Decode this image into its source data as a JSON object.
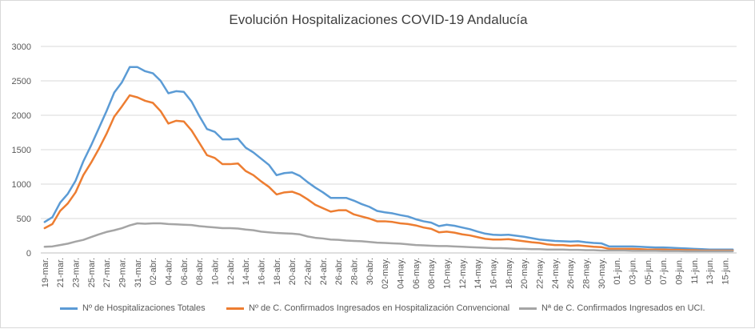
{
  "chart_data": {
    "type": "line",
    "title": "Evolución Hospitalizaciones COVID-19 Andalucía",
    "xlabel": "",
    "ylabel": "",
    "ylim": [
      0,
      3000
    ],
    "yticks": [
      "0",
      "500",
      "1000",
      "1500",
      "2000",
      "2500",
      "3000"
    ],
    "grid": "horizontal",
    "legend_position": "bottom",
    "x": [
      "19-mar.",
      "20-mar.",
      "21-mar.",
      "22-mar.",
      "23-mar.",
      "24-mar.",
      "25-mar.",
      "26-mar.",
      "27-mar.",
      "28-mar.",
      "29-mar.",
      "30-mar.",
      "31-mar.",
      "01-abr.",
      "02-abr.",
      "03-abr.",
      "04-abr.",
      "05-abr.",
      "06-abr.",
      "07-abr.",
      "08-abr.",
      "09-abr.",
      "10-abr.",
      "11-abr.",
      "12-abr.",
      "13-abr.",
      "14-abr.",
      "15-abr.",
      "16-abr.",
      "17-abr.",
      "18-abr.",
      "19-abr.",
      "20-abr.",
      "21-abr.",
      "22-abr.",
      "23-abr.",
      "24-abr.",
      "25-abr.",
      "26-abr.",
      "27-abr.",
      "28-abr.",
      "29-abr.",
      "30-abr.",
      "01-may.",
      "02-may.",
      "03-may.",
      "04-may.",
      "05-may.",
      "06-may.",
      "07-may.",
      "08-may.",
      "09-may.",
      "10-may.",
      "11-may.",
      "12-may.",
      "13-may.",
      "14-may.",
      "15-may.",
      "16-may.",
      "17-may.",
      "18-may.",
      "19-may.",
      "20-may.",
      "21-may.",
      "22-may.",
      "23-may.",
      "24-may.",
      "25-may.",
      "26-may.",
      "27-may.",
      "28-may.",
      "29-may.",
      "30-may.",
      "31-may.",
      "01-jun.",
      "02-jun.",
      "03-jun.",
      "04-jun.",
      "05-jun.",
      "06-jun.",
      "07-jun.",
      "08-jun.",
      "09-jun.",
      "10-jun.",
      "11-jun.",
      "12-jun.",
      "13-jun.",
      "14-jun.",
      "15-jun.",
      "16-jun."
    ],
    "x_tick_labels": [
      "19-mar.",
      "21-mar.",
      "23-mar.",
      "25-mar.",
      "27-mar.",
      "29-mar.",
      "31-mar.",
      "02-abr.",
      "04-abr.",
      "06-abr.",
      "08-abr.",
      "10-abr.",
      "12-abr.",
      "14-abr.",
      "16-abr.",
      "18-abr.",
      "20-abr.",
      "22-abr.",
      "24-abr.",
      "26-abr.",
      "28-abr.",
      "30-abr.",
      "02-may.",
      "04-may.",
      "06-may.",
      "08-may.",
      "10-may.",
      "12-may.",
      "14-may.",
      "16-may.",
      "18-may.",
      "20-may.",
      "22-may.",
      "24-may.",
      "26-may.",
      "28-may.",
      "30-may.",
      "01-jun.",
      "03-jun.",
      "05-jun.",
      "07-jun.",
      "09-jun.",
      "11-jun.",
      "13-jun.",
      "15-jun."
    ],
    "series": [
      {
        "name": "Nº de Hospitalizaciones Totales",
        "color": "#5b9bd5",
        "values": [
          450,
          520,
          730,
          860,
          1050,
          1330,
          1560,
          1810,
          2060,
          2330,
          2480,
          2700,
          2700,
          2640,
          2610,
          2500,
          2320,
          2350,
          2340,
          2200,
          1990,
          1800,
          1760,
          1650,
          1650,
          1660,
          1530,
          1460,
          1370,
          1280,
          1130,
          1160,
          1170,
          1120,
          1030,
          950,
          880,
          800,
          800,
          800,
          760,
          710,
          670,
          610,
          590,
          575,
          550,
          530,
          490,
          460,
          440,
          390,
          410,
          395,
          370,
          345,
          310,
          280,
          265,
          260,
          265,
          250,
          235,
          215,
          195,
          185,
          175,
          170,
          165,
          170,
          155,
          145,
          140,
          95,
          95,
          95,
          95,
          90,
          85,
          80,
          80,
          75,
          70,
          65,
          60,
          55,
          50,
          50,
          50,
          50
        ]
      },
      {
        "name": "Nº de C. Confirmados Ingresados en Hospitalización Convencional",
        "color": "#ed7d31",
        "values": [
          360,
          420,
          610,
          720,
          880,
          1130,
          1310,
          1510,
          1730,
          1980,
          2130,
          2290,
          2260,
          2210,
          2180,
          2060,
          1880,
          1920,
          1910,
          1780,
          1600,
          1420,
          1380,
          1290,
          1290,
          1300,
          1190,
          1130,
          1040,
          960,
          850,
          880,
          890,
          850,
          780,
          700,
          650,
          600,
          620,
          620,
          560,
          530,
          500,
          460,
          460,
          450,
          430,
          420,
          400,
          370,
          350,
          300,
          310,
          295,
          270,
          255,
          230,
          205,
          195,
          195,
          200,
          185,
          170,
          155,
          145,
          125,
          115,
          115,
          105,
          110,
          100,
          90,
          85,
          60,
          60,
          60,
          60,
          55,
          50,
          50,
          50,
          45,
          45,
          40,
          40,
          35,
          35,
          35,
          35,
          35
        ]
      },
      {
        "name": "Nª de C. Confirmados Ingresados en UCI.",
        "color": "#a5a5a5",
        "values": [
          90,
          95,
          115,
          135,
          165,
          190,
          230,
          270,
          305,
          330,
          360,
          400,
          430,
          425,
          430,
          430,
          420,
          415,
          410,
          405,
          390,
          380,
          370,
          360,
          360,
          355,
          340,
          330,
          310,
          300,
          290,
          285,
          280,
          270,
          240,
          220,
          210,
          195,
          190,
          180,
          175,
          170,
          160,
          150,
          145,
          140,
          135,
          125,
          115,
          110,
          105,
          100,
          100,
          95,
          90,
          85,
          80,
          75,
          70,
          70,
          65,
          60,
          60,
          55,
          55,
          50,
          50,
          50,
          45,
          45,
          40,
          40,
          35,
          35,
          35,
          35,
          30,
          30,
          30,
          30,
          28,
          28,
          28,
          25,
          25,
          25,
          25,
          25,
          25,
          25
        ]
      }
    ]
  }
}
